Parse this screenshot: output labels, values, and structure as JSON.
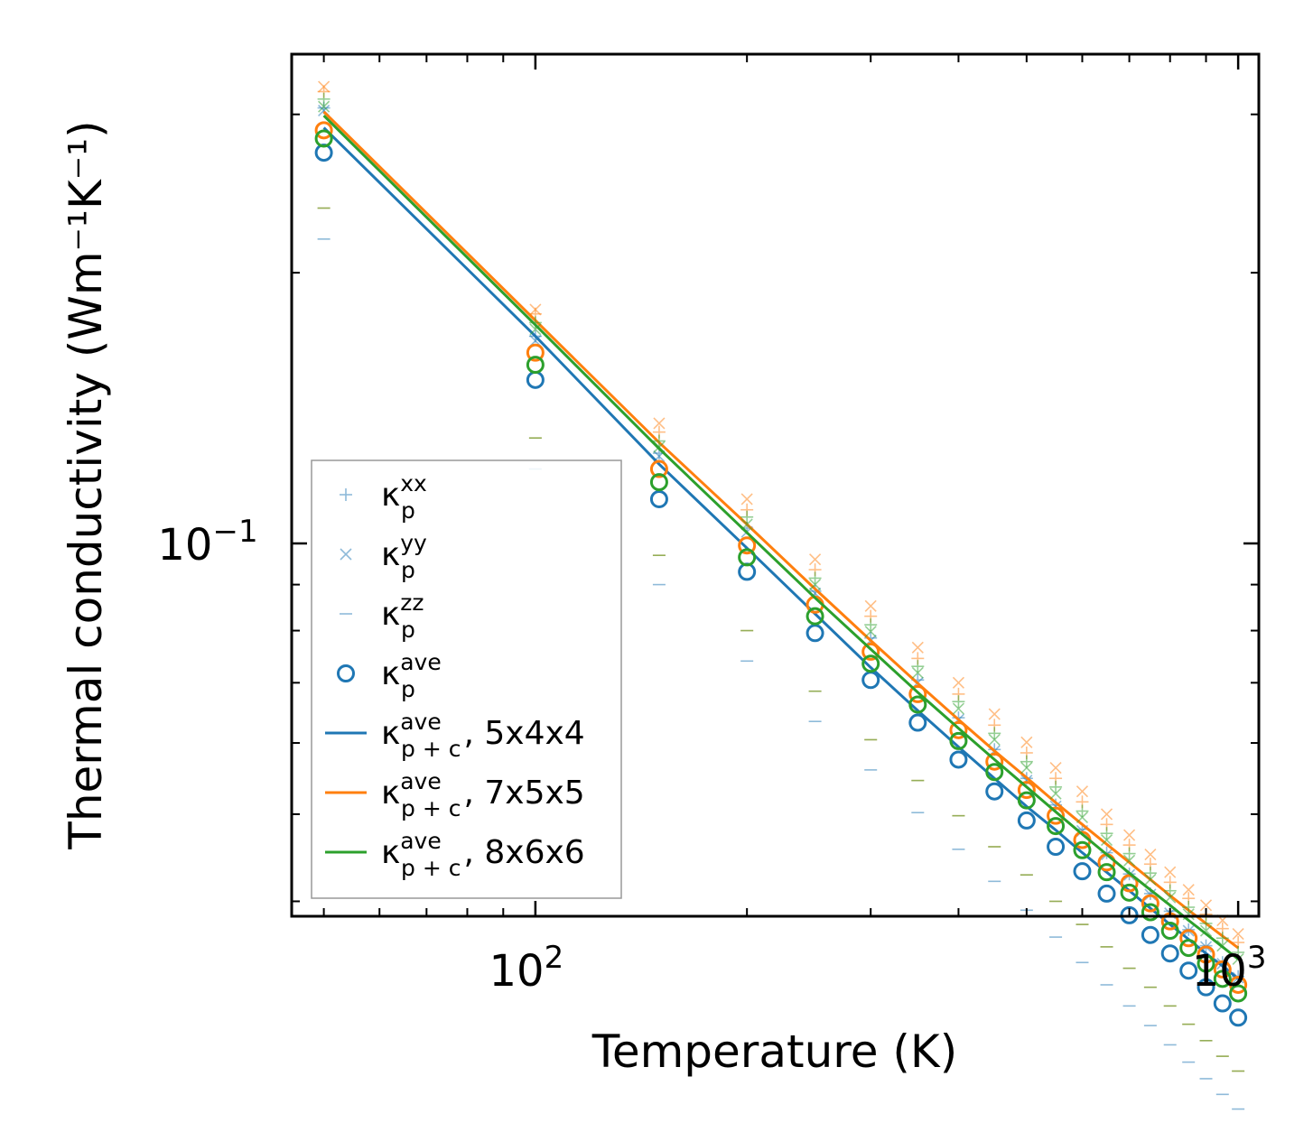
{
  "chart_data": {
    "type": "scatter",
    "xlabel": "Temperature (K)",
    "ylabel": "Thermal conductivity (Wm⁻¹K⁻¹)",
    "xscale": "log",
    "yscale": "log",
    "xlim": [
      45,
      1070
    ],
    "ylim": [
      0.0385,
      0.35
    ],
    "x_tick_labels": [
      {
        "value": 100,
        "base": "10",
        "exp": "2"
      },
      {
        "value": 1000,
        "base": "10",
        "exp": "3"
      }
    ],
    "y_tick_labels": [
      {
        "value": 0.1,
        "base": "10",
        "exp": "−1"
      }
    ],
    "colors": {
      "run1": "#1f77b4",
      "run2": "#ff7f0e",
      "run3": "#2ca02c"
    },
    "T": [
      50,
      100,
      150,
      200,
      250,
      300,
      350,
      400,
      450,
      500,
      550,
      600,
      650,
      700,
      750,
      800,
      850,
      900,
      950,
      1000
    ],
    "datasets": [
      {
        "name": "5x4x4",
        "color": "#1f77b4",
        "xx": [
          0.305,
          0.17,
          0.126,
          0.104,
          0.0885,
          0.0785,
          0.0705,
          0.064,
          0.059,
          0.0548,
          0.0512,
          0.0481,
          0.0453,
          0.0429,
          0.0408,
          0.039,
          0.0372,
          0.0357,
          0.0342,
          0.033
        ],
        "yy": [
          0.303,
          0.168,
          0.125,
          0.103,
          0.088,
          0.078,
          0.07,
          0.0637,
          0.0588,
          0.0545,
          0.051,
          0.0479,
          0.0451,
          0.0428,
          0.0407,
          0.0388,
          0.0371,
          0.0356,
          0.0341,
          0.0329
        ],
        "zz": [
          0.218,
          0.121,
          0.09,
          0.074,
          0.0634,
          0.056,
          0.0502,
          0.0457,
          0.0421,
          0.0391,
          0.0365,
          0.0342,
          0.0323,
          0.0306,
          0.0291,
          0.0277,
          0.0265,
          0.0254,
          0.0244,
          0.0235
        ],
        "ave": [
          0.272,
          0.152,
          0.112,
          0.093,
          0.0795,
          0.0705,
          0.0632,
          0.0575,
          0.053,
          0.0492,
          0.046,
          0.0432,
          0.0408,
          0.0386,
          0.0367,
          0.035,
          0.0335,
          0.0321,
          0.0308,
          0.0297
        ],
        "line": [
          0.29,
          0.17,
          0.1225,
          0.0988,
          0.0835,
          0.0728,
          0.0652,
          0.0594,
          0.0548,
          0.051,
          0.048,
          0.0453,
          0.0431,
          0.0411,
          0.0393,
          0.0377,
          0.0363,
          0.035,
          0.0339,
          0.0328
        ]
      },
      {
        "name": "7x5x5",
        "color": "#ff7f0e",
        "xx": [
          0.318,
          0.18,
          0.133,
          0.109,
          0.0935,
          0.083,
          0.0745,
          0.068,
          0.0628,
          0.0585,
          0.0548,
          0.0516,
          0.0487,
          0.0462,
          0.044,
          0.042,
          0.0403,
          0.0387,
          0.0373,
          0.036
        ],
        "yy": [
          0.322,
          0.182,
          0.136,
          0.112,
          0.096,
          0.0852,
          0.0766,
          0.07,
          0.0646,
          0.0601,
          0.0563,
          0.053,
          0.05,
          0.0474,
          0.0451,
          0.0431,
          0.0412,
          0.0396,
          0.0381,
          0.0368
        ],
        "zz": [
          0.236,
          0.131,
          0.097,
          0.08,
          0.0685,
          0.0605,
          0.0545,
          0.0498,
          0.046,
          0.0428,
          0.04,
          0.0377,
          0.0356,
          0.0337,
          0.0321,
          0.0306,
          0.0292,
          0.028,
          0.0269,
          0.0259
        ],
        "ave": [
          0.288,
          0.163,
          0.121,
          0.0995,
          0.0855,
          0.0758,
          0.068,
          0.062,
          0.0572,
          0.0532,
          0.0498,
          0.0468,
          0.0442,
          0.0419,
          0.0398,
          0.038,
          0.0364,
          0.0349,
          0.0336,
          0.0323
        ],
        "line": [
          0.302,
          0.177,
          0.1295,
          0.105,
          0.089,
          0.078,
          0.0699,
          0.0637,
          0.0588,
          0.0549,
          0.0515,
          0.0487,
          0.0463,
          0.0442,
          0.0423,
          0.0406,
          0.0391,
          0.0378,
          0.0366,
          0.0355
        ]
      },
      {
        "name": "8x6x6",
        "color": "#2ca02c",
        "xx": [
          0.312,
          0.176,
          0.13,
          0.107,
          0.0915,
          0.0812,
          0.073,
          0.0667,
          0.0615,
          0.0572,
          0.0536,
          0.0504,
          0.0476,
          0.0452,
          0.043,
          0.0411,
          0.0394,
          0.0378,
          0.0364,
          0.0351
        ],
        "yy": [
          0.306,
          0.173,
          0.128,
          0.105,
          0.09,
          0.0798,
          0.0718,
          0.0655,
          0.0605,
          0.0563,
          0.0527,
          0.0496,
          0.0468,
          0.0444,
          0.0423,
          0.0404,
          0.0387,
          0.0371,
          0.0357,
          0.0345
        ],
        "zz": [
          0.236,
          0.131,
          0.097,
          0.08,
          0.0685,
          0.0605,
          0.0545,
          0.0498,
          0.046,
          0.0428,
          0.04,
          0.0377,
          0.0356,
          0.0337,
          0.0321,
          0.0306,
          0.0292,
          0.028,
          0.0269,
          0.0259
        ],
        "ave": [
          0.282,
          0.158,
          0.117,
          0.0965,
          0.083,
          0.0735,
          0.0662,
          0.0603,
          0.0557,
          0.0518,
          0.0485,
          0.0456,
          0.0431,
          0.0409,
          0.0389,
          0.0371,
          0.0355,
          0.0341,
          0.0328,
          0.0316
        ],
        "line": [
          0.299,
          0.175,
          0.1275,
          0.1028,
          0.087,
          0.0763,
          0.0683,
          0.0623,
          0.0575,
          0.0536,
          0.0503,
          0.0475,
          0.0451,
          0.043,
          0.0412,
          0.0396,
          0.0381,
          0.0368,
          0.0356,
          0.0345
        ]
      }
    ],
    "legend": {
      "placement": "lower-left",
      "entries": [
        {
          "marker": "plus",
          "sym": "κ",
          "sub": "p",
          "sup": "xx",
          "suffix": ""
        },
        {
          "marker": "x",
          "sym": "κ",
          "sub": "p",
          "sup": "yy",
          "suffix": ""
        },
        {
          "marker": "dash",
          "sym": "κ",
          "sub": "p",
          "sup": "zz",
          "suffix": ""
        },
        {
          "marker": "circle",
          "sym": "κ",
          "sub": "p",
          "sup": "ave",
          "suffix": ""
        },
        {
          "marker": "line-blue",
          "sym": "κ",
          "sub": "p + c",
          "sup": "ave",
          "suffix": ", 5x4x4"
        },
        {
          "marker": "line-orange",
          "sym": "κ",
          "sub": "p + c",
          "sup": "ave",
          "suffix": ", 7x5x5"
        },
        {
          "marker": "line-green",
          "sym": "κ",
          "sub": "p + c",
          "sup": "ave",
          "suffix": ", 8x6x6"
        }
      ]
    }
  }
}
